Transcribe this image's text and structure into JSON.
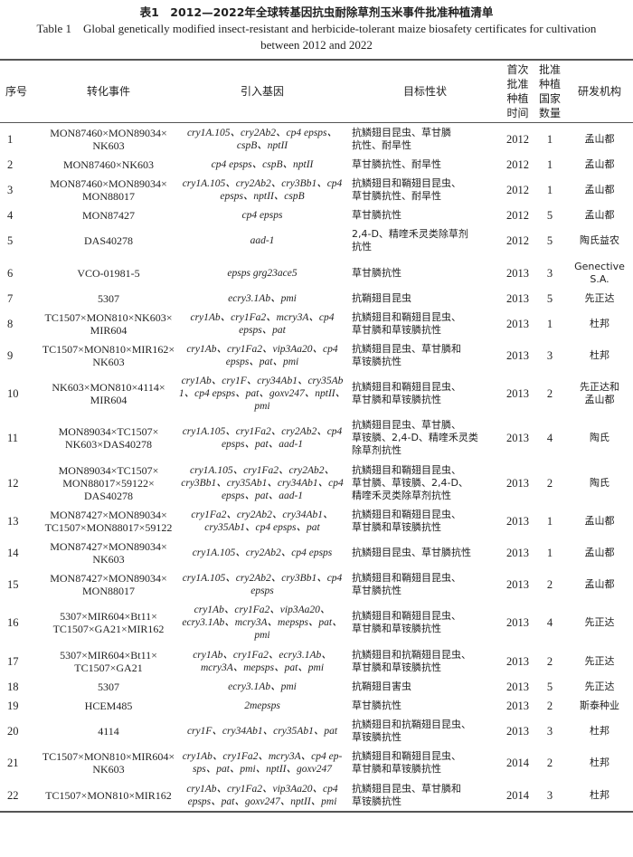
{
  "caption": {
    "cn": "表1　2012—2022年全球转基因抗虫耐除草剂玉米事件批准种植清单",
    "en": "Table 1　Global genetically modified insect-resistant and herbicide-tolerant maize biosafety certificates for cultivation between 2012 and 2022"
  },
  "headers": [
    "序号",
    "转化事件",
    "引入基因",
    "目标性状",
    "首次\n批准\n种植\n时间",
    "批准\n种植\n国家\n数量",
    "研发机构"
  ],
  "rows": [
    {
      "no": "1",
      "event": "MON87460×MON89034×\nNK603",
      "genes": "cry1A.105、cry2Ab2、cp4 epsps、\ncspB、nptII",
      "trait": "抗鳞翅目昆虫、草甘膦\n抗性、耐旱性",
      "year": "2012",
      "count": "1",
      "dev": "孟山都"
    },
    {
      "no": "2",
      "event": "MON87460×NK603",
      "genes": "cp4 epsps、cspB、nptII",
      "trait": "草甘膦抗性、耐旱性",
      "year": "2012",
      "count": "1",
      "dev": "孟山都"
    },
    {
      "no": "3",
      "event": "MON87460×MON89034×\nMON88017",
      "genes": "cry1A.105、cry2Ab2、cry3Bb1、cp4\nepsps、nptII、cspB",
      "trait": "抗鳞翅目和鞘翅目昆虫、\n草甘膦抗性、耐旱性",
      "year": "2012",
      "count": "1",
      "dev": "孟山都"
    },
    {
      "no": "4",
      "event": "MON87427",
      "genes": "cp4 epsps",
      "trait": "草甘膦抗性",
      "year": "2012",
      "count": "5",
      "dev": "孟山都"
    },
    {
      "no": "5",
      "event": "DAS40278",
      "genes": "aad-1",
      "trait": "2,4-D、精喹禾灵类除草剂\n抗性",
      "year": "2012",
      "count": "5",
      "dev": "陶氏益农"
    },
    {
      "no": "6",
      "event": "VCO-01981-5",
      "genes": "epsps grg23ace5",
      "trait": "草甘膦抗性",
      "year": "2013",
      "count": "3",
      "dev": "Genective\nS.A."
    },
    {
      "no": "7",
      "event": "5307",
      "genes": "ecry3.1Ab、pmi",
      "trait": "抗鞘翅目昆虫",
      "year": "2013",
      "count": "5",
      "dev": "先正达"
    },
    {
      "no": "8",
      "event": "TC1507×MON810×NK603×\nMIR604",
      "genes": "cry1Ab、cry1Fa2、mcry3A、cp4\nepsps、pat",
      "trait": "抗鳞翅目和鞘翅目昆虫、\n草甘膦和草铵膦抗性",
      "year": "2013",
      "count": "1",
      "dev": "杜邦"
    },
    {
      "no": "9",
      "event": "TC1507×MON810×MIR162×\nNK603",
      "genes": "cry1Ab、cry1Fa2、vip3Aa20、cp4\nepsps、pat、pmi",
      "trait": "抗鳞翅目昆虫、草甘膦和\n草铵膦抗性",
      "year": "2013",
      "count": "3",
      "dev": "杜邦"
    },
    {
      "no": "10",
      "event": "NK603×MON810×4114×\nMIR604",
      "genes": "cry1Ab、cry1F、cry34Ab1、cry35Ab\n1、cp4 epsps、pat、goxv247、nptII、\npmi",
      "trait": "抗鳞翅目和鞘翅目昆虫、\n草甘膦和草铵膦抗性",
      "year": "2013",
      "count": "2",
      "dev": "先正达和\n孟山都"
    },
    {
      "no": "11",
      "event": "MON89034×TC1507×\nNK603×DAS40278",
      "genes": "cry1A.105、cry1Fa2、cry2Ab2、cp4\nepsps、pat、aad-1",
      "trait": "抗鳞翅目昆虫、草甘膦、\n草铵膦、2,4-D、精喹禾灵类\n除草剂抗性",
      "year": "2013",
      "count": "4",
      "dev": "陶氏"
    },
    {
      "no": "12",
      "event": "MON89034×TC1507×\nMON88017×59122×\nDAS40278",
      "genes": "cry1A.105、cry1Fa2、cry2Ab2、\ncry3Bb1、cry35Ab1、cry34Ab1、cp4\nepsps、pat、aad-1",
      "trait": "抗鳞翅目和鞘翅目昆虫、\n草甘膦、草铵膦、2,4-D、\n精喹禾灵类除草剂抗性",
      "year": "2013",
      "count": "2",
      "dev": "陶氏"
    },
    {
      "no": "13",
      "event": "MON87427×MON89034×\nTC1507×MON88017×59122",
      "genes": "cry1Fa2、cry2Ab2、cry34Ab1、\ncry35Ab1、cp4 epsps、pat",
      "trait": "抗鳞翅目和鞘翅目昆虫、\n草甘膦和草铵膦抗性",
      "year": "2013",
      "count": "1",
      "dev": "孟山都"
    },
    {
      "no": "14",
      "event": "MON87427×MON89034×\nNK603",
      "genes": "cry1A.105、cry2Ab2、cp4 epsps",
      "trait": "抗鳞翅目昆虫、草甘膦抗性",
      "year": "2013",
      "count": "1",
      "dev": "孟山都"
    },
    {
      "no": "15",
      "event": "MON87427×MON89034×\nMON88017",
      "genes": "cry1A.105、cry2Ab2、cry3Bb1、cp4\nepsps",
      "trait": "抗鳞翅目和鞘翅目昆虫、\n草甘膦抗性",
      "year": "2013",
      "count": "2",
      "dev": "孟山都"
    },
    {
      "no": "16",
      "event": "5307×MIR604×Bt11×\nTC1507×GA21×MIR162",
      "genes": "cry1Ab、cry1Fa2、vip3Aa20、\necry3.1Ab、mcry3A、mepsps、pat、\npmi",
      "trait": "抗鳞翅目和鞘翅目昆虫、\n草甘膦和草铵膦抗性",
      "year": "2013",
      "count": "4",
      "dev": "先正达"
    },
    {
      "no": "17",
      "event": "5307×MIR604×Bt11×\nTC1507×GA21",
      "genes": "cry1Ab、cry1Fa2、ecry3.1Ab、\nmcry3A、mepsps、pat、pmi",
      "trait": "抗鳞翅目和抗鞘翅目昆虫、\n草甘膦和草铵膦抗性",
      "year": "2013",
      "count": "2",
      "dev": "先正达"
    },
    {
      "no": "18",
      "event": "5307",
      "genes": "ecry3.1Ab、pmi",
      "trait": "抗鞘翅目害虫",
      "year": "2013",
      "count": "5",
      "dev": "先正达"
    },
    {
      "no": "19",
      "event": "HCEM485",
      "genes": "2mepsps",
      "trait": "草甘膦抗性",
      "year": "2013",
      "count": "2",
      "dev": "斯泰种业"
    },
    {
      "no": "20",
      "event": "4114",
      "genes": "cry1F、cry34Ab1、cry35Ab1、pat",
      "trait": "抗鳞翅目和抗鞘翅目昆虫、\n草铵膦抗性",
      "year": "2013",
      "count": "3",
      "dev": "杜邦"
    },
    {
      "no": "21",
      "event": "TC1507×MON810×MIR604×\nNK603",
      "genes": "cry1Ab、cry1Fa2、mcry3A、cp4 ep-\nsps、pat、pmi、nptII、goxv247",
      "trait": "抗鳞翅目和鞘翅目昆虫、\n草甘膦和草铵膦抗性",
      "year": "2014",
      "count": "2",
      "dev": "杜邦"
    },
    {
      "no": "22",
      "event": "TC1507×MON810×MIR162",
      "genes": "cry1Ab、cry1Fa2、vip3Aa20、cp4\nepsps、pat、goxv247、nptII、pmi",
      "trait": "抗鳞翅目昆虫、草甘膦和\n草铵膦抗性",
      "year": "2014",
      "count": "3",
      "dev": "杜邦"
    }
  ]
}
